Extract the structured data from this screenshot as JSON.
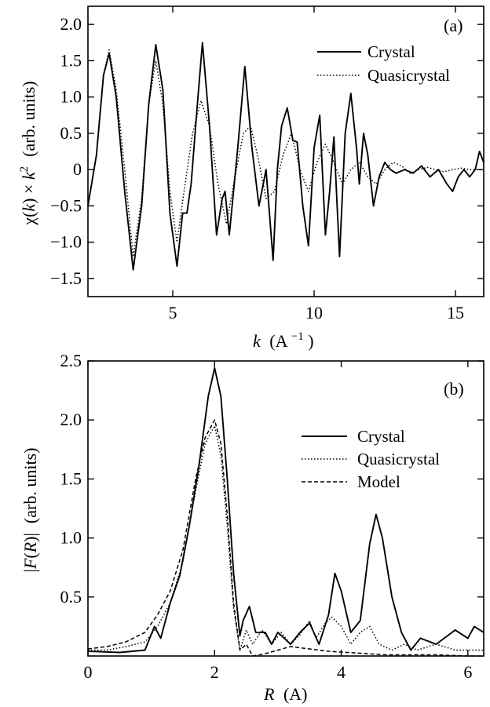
{
  "chart_data": [
    {
      "type": "line",
      "panel_label": "(a)",
      "xlabel_var": "k",
      "xlabel_unit": "(A",
      "xlabel_sup": "−1",
      "xlabel_close": ")",
      "ylabel": "χ(k) × k² (arb. units)",
      "ylabel_parts": {
        "chi": "χ(",
        "k1": "k",
        "mid": ") × ",
        "k2": "k",
        "sup": "2",
        "units": "(arb. units)"
      },
      "xlim": [
        2,
        16
      ],
      "ylim": [
        -1.75,
        2.25
      ],
      "xticks": [
        5,
        10,
        15
      ],
      "yticks": [
        -1.5,
        -1.0,
        -0.5,
        0,
        0.5,
        1.0,
        1.5,
        2.0
      ],
      "ytick_labels": [
        "−1.5",
        "−1.0",
        "−0.5",
        "0",
        "0.5",
        "1.0",
        "1.5",
        "2.0"
      ],
      "legend_position": "top-right",
      "series": [
        {
          "name": "Crystal",
          "style": "solid",
          "x": [
            2.0,
            2.3,
            2.55,
            2.75,
            3.0,
            3.3,
            3.6,
            3.9,
            4.15,
            4.4,
            4.65,
            4.9,
            5.15,
            5.35,
            5.5,
            5.65,
            5.85,
            6.05,
            6.3,
            6.55,
            6.75,
            6.85,
            7.0,
            7.3,
            7.55,
            7.8,
            8.05,
            8.3,
            8.55,
            8.7,
            8.85,
            9.05,
            9.25,
            9.4,
            9.6,
            9.8,
            10.0,
            10.2,
            10.4,
            10.55,
            10.7,
            10.9,
            11.1,
            11.3,
            11.5,
            11.6,
            11.75,
            11.9,
            12.1,
            12.3,
            12.5,
            12.7,
            12.9,
            13.2,
            13.5,
            13.8,
            14.1,
            14.4,
            14.7,
            14.9,
            15.1,
            15.3,
            15.5,
            15.7,
            15.85,
            16.0
          ],
          "y": [
            -0.5,
            0.2,
            1.3,
            1.6,
            1.0,
            -0.3,
            -1.38,
            -0.5,
            0.9,
            1.72,
            1.1,
            -0.6,
            -1.33,
            -0.6,
            -0.6,
            -0.2,
            0.8,
            1.75,
            0.6,
            -0.9,
            -0.4,
            -0.3,
            -0.9,
            0.3,
            1.42,
            0.3,
            -0.5,
            0.0,
            -1.25,
            0.0,
            0.6,
            0.85,
            0.4,
            0.38,
            -0.5,
            -1.05,
            0.3,
            0.75,
            -0.9,
            -0.3,
            0.45,
            -1.2,
            0.5,
            1.05,
            0.3,
            -0.2,
            0.5,
            0.2,
            -0.5,
            -0.1,
            0.1,
            0.0,
            -0.05,
            0.0,
            -0.05,
            0.05,
            -0.1,
            0.0,
            -0.2,
            -0.3,
            -0.1,
            0.0,
            -0.1,
            0.0,
            0.25,
            0.1
          ]
        },
        {
          "name": "Quasicrystal",
          "style": "dotted",
          "x": [
            2.0,
            2.3,
            2.55,
            2.75,
            3.0,
            3.3,
            3.6,
            3.9,
            4.15,
            4.4,
            4.65,
            4.9,
            5.15,
            5.4,
            5.7,
            6.0,
            6.3,
            6.6,
            6.9,
            7.2,
            7.5,
            7.75,
            8.0,
            8.3,
            8.6,
            8.9,
            9.2,
            9.5,
            9.8,
            10.1,
            10.4,
            10.7,
            11.0,
            11.3,
            11.6,
            11.9,
            12.2,
            12.5,
            12.8,
            13.1,
            13.4,
            13.7,
            14.0,
            14.3,
            14.6,
            14.9,
            15.2,
            15.5,
            15.8,
            16.0
          ],
          "y": [
            -0.5,
            0.2,
            1.3,
            1.65,
            1.1,
            0.0,
            -1.2,
            -0.4,
            0.9,
            1.5,
            0.9,
            -0.3,
            -1.0,
            -0.3,
            0.5,
            0.95,
            0.6,
            -0.2,
            -0.75,
            -0.1,
            0.5,
            0.6,
            0.2,
            -0.4,
            -0.3,
            0.2,
            0.5,
            0.0,
            -0.3,
            0.1,
            0.35,
            0.1,
            -0.2,
            0.0,
            0.1,
            -0.1,
            -0.2,
            0.0,
            0.1,
            0.05,
            -0.05,
            0.0,
            0.03,
            0.0,
            -0.03,
            0.0,
            0.02,
            0.0,
            0.0,
            0.0
          ]
        }
      ]
    },
    {
      "type": "line",
      "panel_label": "(b)",
      "xlabel_var": "R",
      "xlabel_unit": "(A)",
      "ylabel": "|F(R)| (arb. units)",
      "ylabel_parts": {
        "open": "|",
        "F": "F",
        "paren1": "(",
        "R": "R",
        "paren2": ")|",
        "units": "(arb. units)"
      },
      "xlim": [
        0,
        6.25
      ],
      "ylim": [
        0,
        2.5
      ],
      "xticks": [
        0,
        2,
        4,
        6
      ],
      "yticks": [
        0.5,
        1.0,
        1.5,
        2.0,
        2.5
      ],
      "ytick_labels": [
        "0.5",
        "1.0",
        "1.5",
        "2.0",
        "2.5"
      ],
      "legend_position": "right",
      "series": [
        {
          "name": "Crystal",
          "style": "solid",
          "x": [
            0.0,
            0.5,
            0.9,
            1.05,
            1.15,
            1.3,
            1.45,
            1.6,
            1.75,
            1.9,
            2.0,
            2.1,
            2.2,
            2.3,
            2.4,
            2.45,
            2.55,
            2.65,
            2.8,
            2.9,
            3.0,
            3.1,
            3.2,
            3.35,
            3.5,
            3.65,
            3.8,
            3.9,
            4.0,
            4.15,
            4.3,
            4.45,
            4.55,
            4.65,
            4.8,
            4.95,
            5.1,
            5.25,
            5.5,
            5.8,
            6.0,
            6.1,
            6.25
          ],
          "y": [
            0.04,
            0.03,
            0.05,
            0.25,
            0.15,
            0.45,
            0.68,
            1.1,
            1.6,
            2.2,
            2.44,
            2.2,
            1.5,
            0.7,
            0.17,
            0.3,
            0.42,
            0.2,
            0.2,
            0.1,
            0.2,
            0.15,
            0.1,
            0.2,
            0.28,
            0.1,
            0.35,
            0.7,
            0.55,
            0.2,
            0.3,
            0.95,
            1.2,
            1.0,
            0.5,
            0.2,
            0.05,
            0.15,
            0.1,
            0.22,
            0.15,
            0.25,
            0.2
          ]
        },
        {
          "name": "Quasicrystal",
          "style": "dotted",
          "x": [
            0.0,
            0.3,
            0.6,
            0.9,
            1.1,
            1.3,
            1.5,
            1.7,
            1.85,
            2.0,
            2.1,
            2.2,
            2.3,
            2.4,
            2.5,
            2.6,
            2.75,
            2.9,
            3.05,
            3.2,
            3.35,
            3.5,
            3.6,
            3.75,
            3.85,
            4.0,
            4.15,
            4.3,
            4.45,
            4.6,
            4.8,
            5.0,
            5.2,
            5.5,
            5.8,
            6.0,
            6.25
          ],
          "y": [
            0.05,
            0.05,
            0.08,
            0.12,
            0.25,
            0.45,
            0.8,
            1.4,
            1.8,
            1.95,
            1.7,
            1.1,
            0.4,
            0.05,
            0.22,
            0.1,
            0.22,
            0.1,
            0.2,
            0.1,
            0.18,
            0.3,
            0.15,
            0.28,
            0.33,
            0.25,
            0.1,
            0.2,
            0.25,
            0.1,
            0.05,
            0.1,
            0.05,
            0.1,
            0.05,
            0.05,
            0.05
          ]
        },
        {
          "name": "Model",
          "style": "dashed",
          "x": [
            0.0,
            0.3,
            0.6,
            0.9,
            1.1,
            1.3,
            1.5,
            1.7,
            1.85,
            2.0,
            2.1,
            2.2,
            2.3,
            2.4,
            2.5,
            2.6,
            2.8,
            3.0,
            3.2,
            3.5,
            3.8,
            4.1,
            4.4,
            4.7,
            5.0,
            5.5,
            6.0,
            6.25
          ],
          "y": [
            0.06,
            0.08,
            0.12,
            0.2,
            0.35,
            0.55,
            0.9,
            1.5,
            1.85,
            2.0,
            1.8,
            1.2,
            0.45,
            0.05,
            0.1,
            0.0,
            0.02,
            0.05,
            0.08,
            0.06,
            0.04,
            0.03,
            0.02,
            0.01,
            0.01,
            0.01,
            0.0,
            0.0
          ]
        }
      ]
    }
  ]
}
